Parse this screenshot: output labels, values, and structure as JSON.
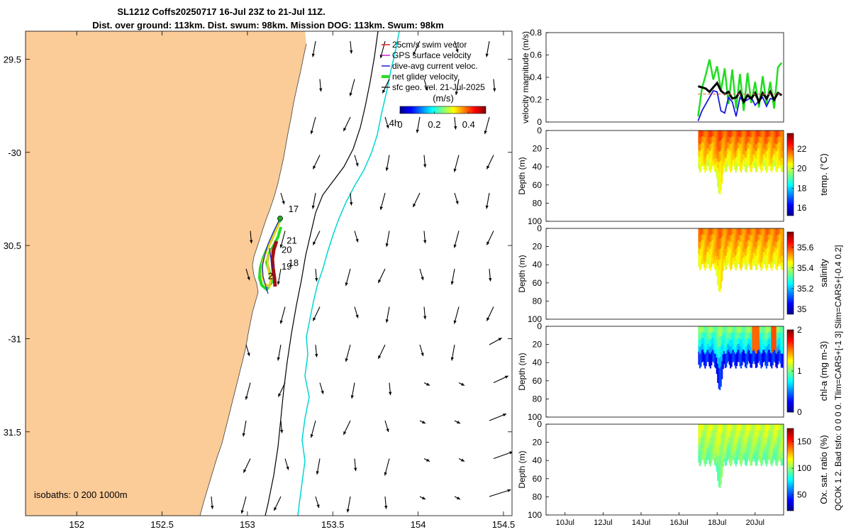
{
  "title_line1": "SL1212 Coffs20250717 16-Jul 23Z to 21-Jul 11Z.",
  "title_line2": "Dist. over ground: 113km. Dist. swum: 98km. Mission DOG: 113km. Swum: 98km",
  "side_label": "QCOK 1  2. Bad tsfo: 0  0  0  0. Tlim=CARS+[-1 3] Slim=CARS+[-0.4 0.2]",
  "colors": {
    "land": "#fbcb98",
    "geo_isobath": "#00d6d6",
    "swim": "#e02020",
    "gps": "#d020d0",
    "dive_avg": "#1a1ae0",
    "net": "#22dd22",
    "black": "#000000"
  },
  "chart_data": [
    {
      "type": "map",
      "xlim": [
        151.7,
        154.55
      ],
      "ylim": [
        -31.95,
        -29.35
      ],
      "xticks": [
        152,
        152.5,
        153,
        153.5,
        154,
        154.5
      ],
      "xtick_labels": [
        "152",
        "152.5",
        "153",
        "153.5",
        "154",
        "154.5"
      ],
      "yticks": [
        -29.5,
        -30,
        -30.5,
        -31,
        -31.5
      ],
      "ytick_labels": [
        "29.5",
        "-30",
        "30.5",
        "-31",
        "31.5"
      ],
      "legend": [
        "25cm/s swim vector",
        "GPS surface velocity",
        "dive-avg current veloc.",
        "net glider velocity",
        "sfc geo. vel. 21-Jul-2025"
      ],
      "colorbar": {
        "label": "(m/s)",
        "range": [
          0,
          0.5
        ],
        "ticks": [
          0,
          0.2,
          0.4
        ],
        "tick_labels": [
          "0",
          "0.2",
          "0.4"
        ]
      },
      "isobaths_label": "isobaths: 0   200   1000m",
      "track_day_labels": [
        {
          "text": "17",
          "lon": 153.24,
          "lat": -30.32
        },
        {
          "text": "21",
          "lon": 153.23,
          "lat": -30.49
        },
        {
          "text": "20",
          "lon": 153.2,
          "lat": -30.54
        },
        {
          "text": "18",
          "lon": 153.24,
          "lat": -30.61
        },
        {
          "text": "19",
          "lon": 153.2,
          "lat": -30.63
        },
        {
          "text": "2",
          "lon": 153.12,
          "lat": -30.68
        },
        {
          "text": "4h",
          "lon": 153.83,
          "lat": -29.86
        }
      ],
      "glider_track": [
        [
          153.19,
          -30.31
        ],
        [
          153.17,
          -30.34
        ],
        [
          153.15,
          -30.38
        ],
        [
          153.13,
          -30.41
        ],
        [
          153.12,
          -30.44
        ],
        [
          153.11,
          -30.47
        ],
        [
          153.1,
          -30.51
        ],
        [
          153.1,
          -30.55
        ],
        [
          153.11,
          -30.59
        ],
        [
          153.12,
          -30.63
        ],
        [
          153.13,
          -30.66
        ],
        [
          153.14,
          -30.68
        ],
        [
          153.12,
          -30.69
        ],
        [
          153.11,
          -30.66
        ],
        [
          153.1,
          -30.61
        ],
        [
          153.11,
          -30.56
        ],
        [
          153.12,
          -30.51
        ]
      ],
      "current_vectors_uv": [
        [
          -0.05,
          -0.28
        ],
        [
          0.02,
          -0.22
        ],
        [
          -0.08,
          -0.3
        ],
        [
          -0.12,
          -0.25
        ],
        [
          0.06,
          -0.2
        ]
      ]
    },
    {
      "type": "line",
      "ylabel": "velocity magnitude (m/s)",
      "ylim": [
        0,
        0.8
      ],
      "yticks": [
        0,
        0.2,
        0.4,
        0.6,
        0.8
      ],
      "ytick_labels": [
        "0",
        "0.2",
        "0.4",
        "0.6",
        "0.8"
      ],
      "xlim": [
        "09-Jul",
        "21-Jul 12Z"
      ],
      "series": [
        {
          "name": "net glider velocity",
          "color": "green",
          "x_days": [
            17.0,
            17.2,
            17.4,
            17.6,
            17.8,
            18.0,
            18.2,
            18.4,
            18.6,
            18.8,
            19.0,
            19.2,
            19.4,
            19.6,
            19.8,
            20.0,
            20.2,
            20.4,
            20.6,
            20.8,
            21.0,
            21.2,
            21.4
          ],
          "values": [
            0.05,
            0.3,
            0.42,
            0.56,
            0.38,
            0.5,
            0.28,
            0.48,
            0.16,
            0.47,
            0.12,
            0.43,
            0.1,
            0.44,
            0.17,
            0.36,
            0.13,
            0.41,
            0.16,
            0.36,
            0.12,
            0.49,
            0.53
          ]
        },
        {
          "name": "dive-avg current veloc.",
          "color": "blue",
          "x_days": [
            17.0,
            17.2,
            17.4,
            17.6,
            17.8,
            18.0,
            18.2,
            18.4,
            18.6,
            18.8,
            19.0,
            19.2,
            19.4,
            19.6,
            19.8,
            20.0,
            20.2,
            20.4,
            20.6,
            20.8,
            21.0,
            21.2,
            21.4
          ],
          "values": [
            0.01,
            0.1,
            0.16,
            0.22,
            0.28,
            0.27,
            0.1,
            0.08,
            0.22,
            0.18,
            0.05,
            0.22,
            0.18,
            0.2,
            0.22,
            0.15,
            0.19,
            0.22,
            0.14,
            0.21,
            0.2,
            0.25,
            0.24
          ]
        },
        {
          "name": "speed (black)",
          "color": "black",
          "x_days": [
            17.0,
            17.2,
            17.4,
            17.6,
            17.8,
            18.0,
            18.2,
            18.4,
            18.6,
            18.8,
            19.0,
            19.2,
            19.4,
            19.6,
            19.8,
            20.0,
            20.2,
            20.4,
            20.6,
            20.8,
            21.0,
            21.2,
            21.4
          ],
          "values": [
            0.32,
            0.31,
            0.3,
            0.27,
            0.31,
            0.35,
            0.28,
            0.25,
            0.27,
            0.21,
            0.22,
            0.27,
            0.18,
            0.24,
            0.21,
            0.26,
            0.18,
            0.26,
            0.21,
            0.27,
            0.2,
            0.26,
            0.24
          ]
        },
        {
          "name": "25cm/s swim vector",
          "color": "red",
          "x_days": [
            17.0,
            21.4
          ],
          "values": [
            0.25,
            0.25
          ]
        }
      ]
    },
    {
      "type": "heatmap",
      "ylabel": "Depth (m)",
      "cbar_label": "temp. (°C)",
      "yticks": [
        0,
        20,
        40,
        60,
        80,
        100
      ],
      "ytick_labels": [
        "0",
        "20",
        "40",
        "60",
        "80",
        "100"
      ],
      "cbar_ticks": [
        16,
        18,
        20,
        22
      ],
      "cbar_tick_labels": [
        "16",
        "18",
        "20",
        "22"
      ],
      "cbar_range": [
        15.2,
        23.6
      ],
      "data_x_days": [
        17.0,
        21.45
      ],
      "typical_bottom_depth_m": 42,
      "max_depth_m": 70
    },
    {
      "type": "heatmap",
      "ylabel": "Depth (m)",
      "cbar_label": "salinity",
      "yticks": [
        0,
        20,
        40,
        60,
        80,
        100
      ],
      "ytick_labels": [
        "0",
        "20",
        "40",
        "60",
        "80",
        "100"
      ],
      "cbar_ticks": [
        35,
        35.2,
        35.4,
        35.6
      ],
      "cbar_tick_labels": [
        "35",
        "35.2",
        "35.4",
        "35.6"
      ],
      "cbar_range": [
        34.95,
        35.75
      ],
      "data_x_days": [
        17.0,
        21.45
      ],
      "typical_bottom_depth_m": 42,
      "max_depth_m": 70
    },
    {
      "type": "heatmap",
      "ylabel": "Depth (m)",
      "cbar_label": "chl-a (mg m-3)",
      "yticks": [
        0,
        20,
        40,
        60,
        80,
        100
      ],
      "ytick_labels": [
        "0",
        "20",
        "40",
        "60",
        "80",
        "100"
      ],
      "cbar_ticks": [
        0,
        1,
        2
      ],
      "cbar_tick_labels": [
        "0",
        "1",
        "2"
      ],
      "cbar_range": [
        0,
        2
      ],
      "data_x_days": [
        17.0,
        21.45
      ],
      "typical_bottom_depth_m": 42,
      "max_depth_m": 70
    },
    {
      "type": "heatmap",
      "ylabel": "Depth (m)",
      "cbar_label": "Ox. sat. ratio (%)",
      "yticks": [
        0,
        20,
        40,
        60,
        80,
        100
      ],
      "ytick_labels": [
        "0",
        "20",
        "40",
        "60",
        "80",
        "100"
      ],
      "cbar_ticks": [
        50,
        100,
        150
      ],
      "cbar_tick_labels": [
        "50",
        "100",
        "150"
      ],
      "cbar_range": [
        20,
        175
      ],
      "xticks_days": [
        10,
        12,
        14,
        16,
        18,
        20
      ],
      "xtick_labels": [
        "10Jul",
        "12Jul",
        "14Jul",
        "16Jul",
        "18Jul",
        "20Jul"
      ],
      "data_x_days": [
        17.0,
        21.45
      ],
      "typical_bottom_depth_m": 42,
      "max_depth_m": 70
    }
  ]
}
